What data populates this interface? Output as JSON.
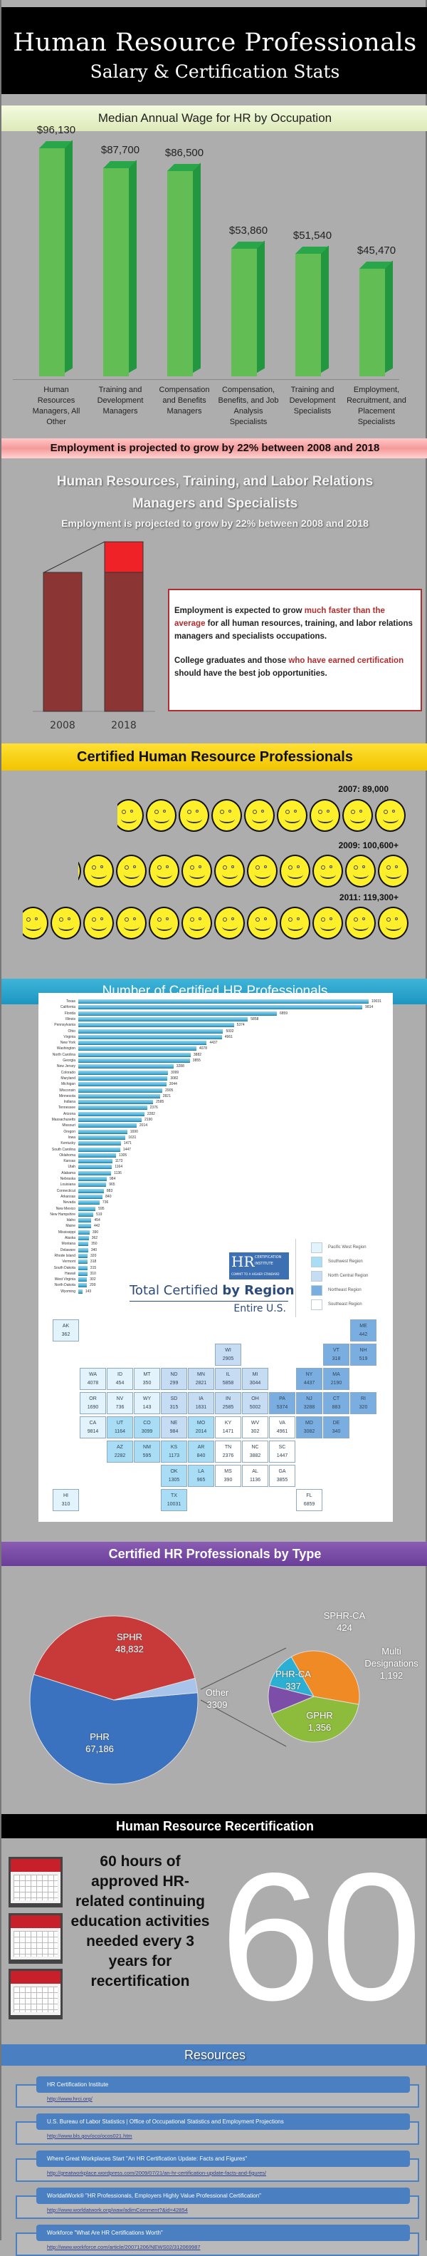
{
  "header": {
    "title": "Human Resource Professionals",
    "subtitle": "Salary & Certification Stats"
  },
  "wages": {
    "heading": "Median Annual Wage for HR by Occupation",
    "chart_data": {
      "type": "bar",
      "categories": [
        "Human Resources Managers, All Other",
        "Training and Development Managers",
        "Compensation and Benefits Managers",
        "Compensation, Benefits, and Job Analysis Specialists",
        "Training and Development Specialists",
        "Employment, Recruitment, and Placement Specialists"
      ],
      "values": [
        96130,
        87700,
        86500,
        53860,
        51540,
        45470
      ],
      "labels": [
        "$96,130",
        "$87,700",
        "$86,500",
        "$53,860",
        "$51,540",
        "$45,470"
      ],
      "bar_color": "#62bd55"
    }
  },
  "growth": {
    "banner": "Employment is projected to grow by 22% between 2008 and 2018",
    "title_line1": "Human Resources, Training, and Labor Relations",
    "title_line2": "Managers and Specialists",
    "subtitle": "Employment is projected to grow by 22% between 2008 and 2018",
    "chart_data": {
      "type": "bar",
      "categories": [
        "2008",
        "2018"
      ],
      "values": [
        100,
        122
      ],
      "growth_percent": 22
    },
    "box_p1_a": "Employment is expected to grow ",
    "box_p1_hl": "much faster than the average",
    "box_p1_b": " for all human resources, training, and labor relations managers and specialists occupations.",
    "box_p2_a": "College graduates and those ",
    "box_p2_hl": "who have earned certification",
    "box_p2_b": " should have the best job opportunities."
  },
  "certified": {
    "heading": "Certified Human Resource Professionals",
    "rows": [
      {
        "label": "2007: 89,000",
        "value": 89000
      },
      {
        "label": "2009: 100,600+",
        "value": 100600
      },
      {
        "label": "2011: 119,300+",
        "value": 119300
      }
    ],
    "icon": "smiley-face-icon"
  },
  "by_state": {
    "heading": "Number of Certified HR Professionals",
    "chart_data": {
      "type": "bar",
      "orientation": "horizontal",
      "categories": [
        "Texas",
        "California",
        "Florida",
        "Illinois",
        "Pennsylvania",
        "Ohio",
        "Virginia",
        "New York",
        "Washington",
        "North Carolina",
        "Georgia",
        "New Jersey",
        "Colorado",
        "Maryland",
        "Michigan",
        "Wisconsin",
        "Minnesota",
        "Indiana",
        "Tennessee",
        "Arizona",
        "Massachusetts",
        "Missouri",
        "Oregon",
        "Iowa",
        "Kentucky",
        "South Carolina",
        "Oklahoma",
        "Kansas",
        "Utah",
        "Alabama",
        "Nebraska",
        "Louisiana",
        "Connecticut",
        "Arkansas",
        "Nevada",
        "New Mexico",
        "New Hampshire",
        "Idaho",
        "Maine",
        "Mississippi",
        "Alaska",
        "Montana",
        "Delaware",
        "Rhode Island",
        "Vermont",
        "South Dakota",
        "Hawaii",
        "West Virginia",
        "North Dakota",
        "Wyoming"
      ],
      "values": [
        10031,
        9814,
        6859,
        5858,
        5374,
        5002,
        4961,
        4437,
        4078,
        3882,
        3855,
        3288,
        3099,
        3082,
        3044,
        2905,
        2821,
        2585,
        2376,
        2282,
        2190,
        2014,
        1690,
        1631,
        1471,
        1447,
        1305,
        1173,
        1164,
        1136,
        984,
        965,
        883,
        840,
        736,
        595,
        519,
        454,
        442,
        390,
        362,
        350,
        340,
        320,
        318,
        315,
        310,
        302,
        299,
        143
      ]
    },
    "map_title_a": "Total Certified ",
    "map_title_b": "by Region",
    "map_subtitle": "Entire U.S.",
    "logo": {
      "letters": "HR",
      "line1": "CERTIFICATION",
      "line2": "INSTITUTE",
      "tagline": "COMMIT TO A HIGHER STANDARD"
    },
    "legend": [
      {
        "label": "Pacific West Region",
        "color": "#e3f3fb"
      },
      {
        "label": "Southwest Region",
        "color": "#a8ddf5"
      },
      {
        "label": "North Central Region",
        "color": "#c5dcf3"
      },
      {
        "label": "Northeast Region",
        "color": "#7aaee0"
      },
      {
        "label": "Southeast Region",
        "color": "#ffffff"
      }
    ],
    "map": [
      [
        "AK",
        362,
        0
      ],
      [
        "HI",
        310,
        0
      ],
      [
        "WA",
        4078,
        0
      ],
      [
        "OR",
        1690,
        0
      ],
      [
        "CA",
        9814,
        0
      ],
      [
        "NV",
        736,
        0
      ],
      [
        "ID",
        454,
        0
      ],
      [
        "MT",
        350,
        0
      ],
      [
        "WY",
        143,
        0
      ],
      [
        "UT",
        1164,
        1
      ],
      [
        "CO",
        3099,
        1
      ],
      [
        "AZ",
        2282,
        1
      ],
      [
        "NM",
        595,
        1
      ],
      [
        "TX",
        10031,
        1
      ],
      [
        "OK",
        1305,
        1
      ],
      [
        "KS",
        1173,
        1
      ],
      [
        "MO",
        2014,
        1
      ],
      [
        "AR",
        840,
        1
      ],
      [
        "LA",
        965,
        1
      ],
      [
        "ND",
        299,
        2
      ],
      [
        "SD",
        315,
        2
      ],
      [
        "NE",
        984,
        2
      ],
      [
        "MN",
        2821,
        2
      ],
      [
        "IA",
        1631,
        2
      ],
      [
        "WI",
        2905,
        2
      ],
      [
        "MI",
        3044,
        2
      ],
      [
        "IL",
        5858,
        2
      ],
      [
        "IN",
        2585,
        2
      ],
      [
        "OH",
        5002,
        2
      ],
      [
        "ME",
        442,
        3
      ],
      [
        "NH",
        519,
        3
      ],
      [
        "VT",
        318,
        3
      ],
      [
        "MA",
        2190,
        3
      ],
      [
        "RI",
        320,
        3
      ],
      [
        "CT",
        883,
        3
      ],
      [
        "NY",
        4437,
        3
      ],
      [
        "NJ",
        3288,
        3
      ],
      [
        "PA",
        5374,
        3
      ],
      [
        "DE",
        340,
        3
      ],
      [
        "MD",
        3082,
        3
      ],
      [
        "KY",
        1471,
        4
      ],
      [
        "TN",
        2376,
        4
      ],
      [
        "NC",
        3882,
        4
      ],
      [
        "SC",
        1447,
        4
      ],
      [
        "GA",
        3855,
        4
      ],
      [
        "FL",
        6859,
        4
      ],
      [
        "AL",
        1136,
        4
      ],
      [
        "MS",
        390,
        4
      ],
      [
        "WV",
        302,
        4
      ],
      [
        "VA",
        4961,
        4
      ]
    ]
  },
  "types": {
    "heading": "Certified HR Professionals by Type",
    "chart_data": [
      {
        "type": "pie",
        "slices": [
          {
            "label": "PHR",
            "value": 67186,
            "display": "67,186",
            "color": "#3a72bf"
          },
          {
            "label": "SPHR",
            "value": 48832,
            "display": "48,832",
            "color": "#c83a3a"
          },
          {
            "label": "Other",
            "value": 3309,
            "display": "3309",
            "color": "#a9c4ea"
          }
        ]
      },
      {
        "type": "pie",
        "slices": [
          {
            "label": "GPHR",
            "value": 1356,
            "display": "1,356",
            "color": "#8dbb3c"
          },
          {
            "label": "PHR-CA",
            "value": 337,
            "display": "337",
            "color": "#7d4ea8"
          },
          {
            "label": "SPHR-CA",
            "value": 424,
            "display": "424",
            "color": "#2bb0d3"
          },
          {
            "label": "Multi Designations",
            "value": 1192,
            "display": "1,192",
            "color": "#f08a24"
          }
        ]
      }
    ]
  },
  "recert": {
    "heading": "Human Resource Recertification",
    "big_number": "60",
    "text": "60 hours of approved HR-related continuing education activities needed every 3 years for recertification",
    "icon": "calendar-icon"
  },
  "resources": {
    "heading": "Resources",
    "items": [
      {
        "title": "HR Certification Institute",
        "url": "http://www.hrci.org/"
      },
      {
        "title": "U.S. Bureau of Labor Statistics | Office of Occupational Statistics and Employment Projections",
        "url": "http://www.bls.gov/oco/ocos021.htm"
      },
      {
        "title": "Where Great Workplaces Start \"An HR Certification Update: Facts and Figures\"",
        "url": "http://greatworkplace.wordpress.com/2009/07/21/an-hr-certification-update-facts-and-figures/"
      },
      {
        "title": "WorldatWork® \"HR Professionals, Employers Highly Value Professional Certification\"",
        "url": "http://www.worldatwork.org/waw/adimComment?&id=42854"
      },
      {
        "title": "Workforce \"What Are HR Certifications Worth\"",
        "url": "http://www.workforce.com/article/20071206/NEWS02/312069987"
      }
    ]
  }
}
